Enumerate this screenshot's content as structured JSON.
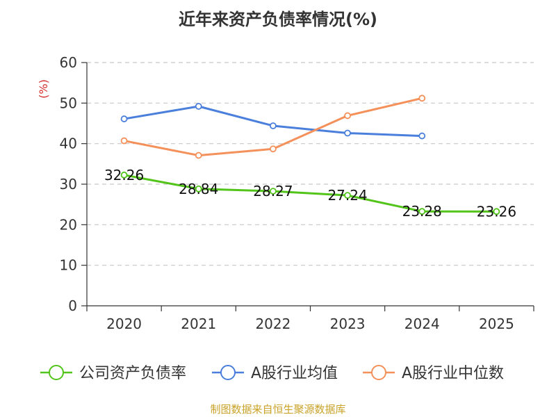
{
  "chart_data": {
    "type": "line",
    "title": "近年来资产负债率情况(%)",
    "ylabel": "(%)",
    "xlabel": "",
    "categories": [
      "2020",
      "2021",
      "2022",
      "2023",
      "2024",
      "2025"
    ],
    "ylim": [
      0,
      60
    ],
    "yticks": [
      0,
      10,
      20,
      30,
      40,
      50,
      60
    ],
    "grid": true,
    "legend_position": "bottom",
    "series": [
      {
        "name": "公司资产负债率",
        "color": "#52c41a",
        "values": [
          32.26,
          28.84,
          28.27,
          27.24,
          23.28,
          23.26
        ],
        "data_labels": [
          "32.26",
          "28.84",
          "28.27",
          "27.24",
          "23.28",
          "23.26"
        ]
      },
      {
        "name": "A股行业均值",
        "color": "#4a7fdc",
        "values": [
          46.1,
          49.2,
          44.4,
          42.6,
          41.9,
          null
        ]
      },
      {
        "name": "A股行业中位数",
        "color": "#f4905a",
        "values": [
          40.7,
          37.1,
          38.7,
          46.9,
          51.2,
          null
        ]
      }
    ]
  },
  "source": "制图数据来自恒生聚源数据库"
}
